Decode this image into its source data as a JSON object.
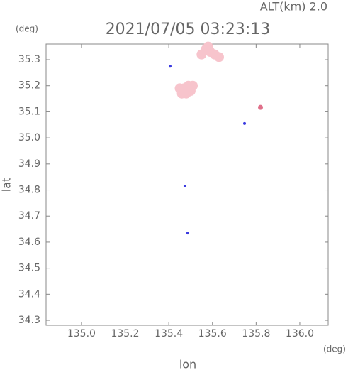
{
  "chart_data": {
    "type": "scatter",
    "title": "2021/07/05 03:23:13",
    "altitude_label": "ALT(km) 2.0",
    "y_unit": "(deg)",
    "x_unit": "(deg)",
    "xlabel": "lon",
    "ylabel": "lat",
    "xlim": [
      134.838,
      136.13
    ],
    "ylim": [
      34.281,
      35.36
    ],
    "xticks": [
      {
        "value": 135.0,
        "label": "135.0"
      },
      135.2,
      135.4,
      135.6,
      135.8,
      {
        "value": 136.0,
        "label": "136.0"
      }
    ],
    "yticks": [
      34.3,
      34.4,
      34.5,
      34.6,
      34.7,
      34.8,
      34.9,
      {
        "value": 35.0,
        "label": "35.0"
      },
      35.1,
      35.2,
      35.3
    ],
    "series": [
      {
        "color": "#f7c4cc",
        "x": [
          135.55,
          135.57,
          135.59,
          135.61,
          135.63,
          135.58,
          135.45,
          135.47,
          135.49,
          135.51,
          135.46,
          135.48,
          135.5
        ],
        "y": [
          35.32,
          35.34,
          35.33,
          35.32,
          35.31,
          35.35,
          35.19,
          35.19,
          35.2,
          35.2,
          35.17,
          35.17,
          35.18
        ]
      },
      {
        "color": "#e0708a",
        "x": [
          135.82
        ],
        "y": [
          35.117
        ]
      },
      {
        "color": "#3a3ae0",
        "x": [
          135.406,
          135.747,
          135.474,
          135.487
        ],
        "y": [
          35.275,
          35.055,
          34.815,
          34.635
        ]
      }
    ]
  }
}
